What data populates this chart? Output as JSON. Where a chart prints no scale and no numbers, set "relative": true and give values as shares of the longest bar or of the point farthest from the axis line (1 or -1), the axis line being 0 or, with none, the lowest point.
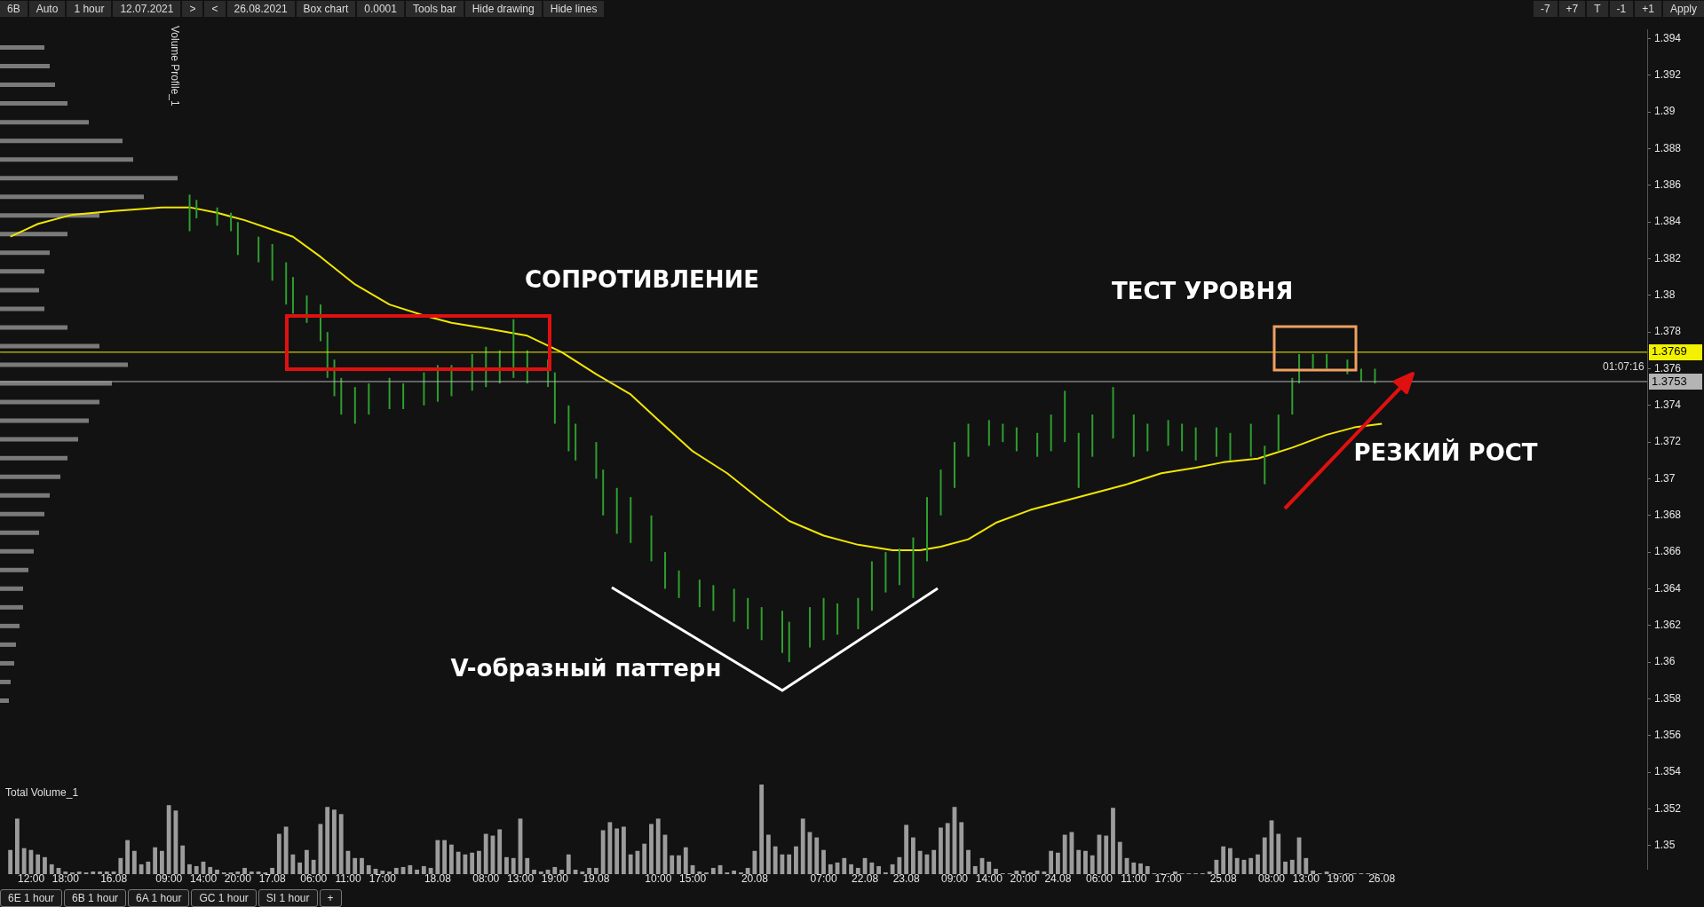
{
  "chart_data": [
    {
      "type": "bar",
      "ylim": [
        1.3487,
        1.3945
      ],
      "yticks": [
        1.35,
        1.352,
        1.354,
        1.356,
        1.358,
        1.36,
        1.362,
        1.364,
        1.366,
        1.368,
        1.37,
        1.372,
        1.374,
        1.376,
        1.378,
        1.38,
        1.382,
        1.384,
        1.386,
        1.388,
        1.39,
        1.392,
        1.394
      ],
      "marker": "none",
      "categories": [
        null,
        null,
        null,
        null,
        "12:00",
        null,
        null,
        null,
        null,
        "18:00",
        null,
        null,
        null,
        null,
        null,
        null,
        "16.08",
        null,
        null,
        null,
        null,
        null,
        null,
        null,
        "09:00",
        null,
        null,
        null,
        null,
        "14:00",
        null,
        null,
        null,
        null,
        "20:00",
        null,
        null,
        null,
        null,
        "17.08",
        null,
        null,
        null,
        null,
        null,
        "06:00",
        null,
        null,
        null,
        null,
        "11:00",
        null,
        null,
        null,
        null,
        "17:00",
        null,
        null,
        null,
        null,
        null,
        null,
        null,
        "18.08",
        null,
        null,
        null,
        null,
        null,
        null,
        "08:00",
        null,
        null,
        null,
        null,
        "13:00",
        null,
        null,
        null,
        null,
        "19:00",
        null,
        null,
        null,
        null,
        null,
        "19.08",
        null,
        null,
        null,
        null,
        null,
        null,
        null,
        null,
        "10:00",
        null,
        null,
        null,
        null,
        "15:00",
        null,
        null,
        null,
        null,
        null,
        null,
        null,
        null,
        "20.08",
        null,
        null,
        null,
        null,
        null,
        null,
        null,
        null,
        null,
        "07:00",
        null,
        null,
        null,
        null,
        null,
        "22.08",
        null,
        null,
        null,
        null,
        null,
        "23.08",
        null,
        null,
        null,
        null,
        null,
        null,
        "09:00",
        null,
        null,
        null,
        null,
        "14:00",
        null,
        null,
        null,
        null,
        "20:00",
        null,
        null,
        null,
        null,
        "24.08",
        null,
        null,
        null,
        null,
        null,
        "06:00",
        null,
        null,
        null,
        null,
        "11:00",
        null,
        null,
        null,
        null,
        "17:00",
        null,
        null,
        null,
        null,
        null,
        null,
        null,
        "25.08",
        null,
        null,
        null,
        null,
        null,
        null,
        "08:00",
        null,
        null,
        null,
        null,
        "13:00",
        null,
        null,
        null,
        null,
        "19:00",
        null,
        null,
        null,
        null,
        null,
        "26.08",
        null,
        null,
        null,
        null,
        null,
        null,
        null,
        null,
        null,
        null,
        null,
        null,
        null,
        null,
        null,
        null,
        null,
        null,
        null,
        null,
        null,
        null,
        null,
        null,
        null,
        null,
        null,
        null,
        null,
        null,
        null,
        null,
        null,
        null,
        null,
        null,
        null,
        null
      ],
      "series": [
        {
          "type": "bar",
          "color": "#2f9e2f",
          "base": [
            null,
            null,
            null,
            null,
            null,
            null,
            null,
            null,
            null,
            null,
            null,
            null,
            null,
            null,
            null,
            null,
            null,
            null,
            null,
            null,
            null,
            null,
            null,
            null,
            null,
            null,
            null,
            1.3835,
            1.3842,
            null,
            null,
            1.3838,
            null,
            1.3835,
            1.3822,
            null,
            null,
            1.3818,
            null,
            1.3808,
            null,
            1.3795,
            1.379,
            null,
            1.3785,
            null,
            1.3775,
            1.3755,
            1.3745,
            1.3735,
            null,
            1.373,
            null,
            1.3735,
            null,
            null,
            1.3738,
            null,
            1.3738,
            null,
            null,
            1.374,
            null,
            1.3742,
            null,
            1.3745,
            null,
            null,
            1.3748,
            null,
            1.375,
            null,
            1.3752,
            null,
            1.3755,
            null,
            1.3752,
            null,
            null,
            1.375,
            1.373,
            null,
            1.3715,
            1.371,
            null,
            null,
            1.37,
            1.368,
            null,
            1.367,
            null,
            1.3665,
            null,
            null,
            1.3655,
            null,
            1.364,
            null,
            1.3635,
            null,
            null,
            1.363,
            null,
            1.3628,
            null,
            null,
            1.3622,
            null,
            1.3618,
            null,
            1.3612,
            null,
            null,
            1.3605,
            1.36,
            null,
            null,
            1.3608,
            null,
            1.3612,
            null,
            1.3615,
            null,
            null,
            1.3618,
            null,
            1.3628,
            null,
            1.3638,
            null,
            1.3642,
            null,
            1.3635,
            null,
            1.3655,
            null,
            1.368,
            null,
            1.3695,
            null,
            1.3712,
            null,
            null,
            1.3718,
            null,
            1.372,
            null,
            1.3715,
            null,
            null,
            1.3712,
            null,
            1.3715,
            null,
            1.372,
            null,
            1.3695,
            null,
            1.3712,
            null,
            null,
            1.3722,
            null,
            null,
            1.3712,
            null,
            1.3715,
            null,
            null,
            1.3718,
            null,
            1.3715,
            null,
            1.371,
            null,
            null,
            1.3712,
            null,
            1.371,
            null,
            null,
            1.3712,
            null,
            1.3697,
            null,
            1.3715,
            null,
            1.3735,
            1.3752,
            null,
            1.376,
            null,
            1.376,
            null,
            null,
            1.3757,
            null,
            1.3753,
            null,
            1.3752,
            null,
            null,
            null,
            null,
            null,
            null,
            null,
            null,
            null,
            null,
            null,
            null,
            null,
            null,
            null,
            null,
            null,
            null,
            null,
            null,
            null,
            null,
            null,
            null,
            null,
            null,
            null,
            null,
            null,
            null,
            null,
            null,
            null,
            null,
            null,
            null,
            null,
            null,
            null
          ],
          "values": [
            null,
            null,
            null,
            null,
            null,
            null,
            null,
            null,
            null,
            null,
            null,
            null,
            null,
            null,
            null,
            null,
            null,
            null,
            null,
            null,
            null,
            null,
            null,
            null,
            null,
            null,
            null,
            0.002,
            0.001,
            null,
            null,
            0.001,
            null,
            0.001,
            0.0018,
            null,
            null,
            0.0014,
            null,
            0.002,
            null,
            0.0023,
            0.002,
            null,
            0.0015,
            null,
            0.002,
            0.0025,
            0.002,
            0.002,
            null,
            0.002,
            null,
            0.0017,
            null,
            null,
            0.0017,
            null,
            0.0014,
            null,
            null,
            0.0018,
            null,
            0.002,
            null,
            0.0017,
            null,
            null,
            0.002,
            null,
            0.0022,
            null,
            0.0018,
            null,
            0.0032,
            null,
            0.0018,
            null,
            null,
            0.0015,
            0.0028,
            null,
            0.0025,
            0.002,
            null,
            null,
            0.002,
            0.0025,
            null,
            0.0025,
            null,
            0.0025,
            null,
            null,
            0.0025,
            null,
            0.002,
            null,
            0.0015,
            null,
            null,
            0.0015,
            null,
            0.0014,
            null,
            null,
            0.0018,
            null,
            0.0017,
            null,
            0.0018,
            null,
            null,
            0.0023,
            0.0022,
            null,
            null,
            0.0022,
            null,
            0.0023,
            null,
            0.0017,
            null,
            null,
            0.0017,
            null,
            0.0027,
            null,
            0.0022,
            null,
            0.002,
            null,
            0.0033,
            null,
            0.0035,
            null,
            0.0025,
            null,
            0.0025,
            null,
            0.0018,
            null,
            null,
            0.0014,
            null,
            0.001,
            null,
            0.0013,
            null,
            null,
            0.0013,
            null,
            0.002,
            null,
            0.0028,
            null,
            0.003,
            null,
            0.0023,
            null,
            null,
            0.0028,
            null,
            null,
            0.0023,
            null,
            0.0015,
            null,
            null,
            0.0014,
            null,
            0.0015,
            null,
            0.0018,
            null,
            null,
            0.0016,
            null,
            0.0015,
            null,
            null,
            0.0018,
            null,
            0.0021,
            null,
            0.002,
            null,
            0.002,
            0.0016,
            null,
            0.0008,
            null,
            0.0008,
            null,
            null,
            0.0008,
            null,
            0.0007,
            null,
            0.0008,
            null,
            null,
            null,
            null,
            null,
            null,
            null,
            null,
            null,
            null,
            null,
            null,
            null,
            null,
            null,
            null,
            null,
            null,
            null,
            null,
            null,
            null,
            null,
            null,
            null,
            null,
            null,
            null,
            null,
            null,
            null,
            null,
            null,
            null,
            null,
            null,
            null,
            null,
            null
          ]
        },
        {
          "type": "line",
          "color": "#f2e600",
          "values": [
            null,
            1.3832,
            null,
            null,
            null,
            1.3839,
            null,
            null,
            null,
            null,
            1.3844,
            null,
            null,
            null,
            null,
            null,
            1.3846,
            null,
            null,
            null,
            null,
            null,
            null,
            1.3848,
            null,
            null,
            null,
            1.3848,
            null,
            null,
            null,
            1.3845,
            null,
            null,
            null,
            1.3841,
            null,
            null,
            null,
            null,
            null,
            null,
            1.3832,
            null,
            null,
            null,
            1.3821,
            null,
            null,
            null,
            null,
            1.3806,
            null,
            null,
            null,
            null,
            1.3795,
            null,
            null,
            null,
            null,
            1.3789,
            null,
            null,
            null,
            1.3785,
            null,
            null,
            null,
            null,
            1.3782,
            null,
            null,
            null,
            null,
            null,
            1.3778,
            null,
            null,
            null,
            null,
            1.3769,
            null,
            null,
            null,
            null,
            1.3757,
            null,
            null,
            null,
            null,
            1.3746,
            null,
            null,
            null,
            1.3732,
            null,
            null,
            null,
            null,
            1.3715,
            null,
            null,
            null,
            null,
            1.3703,
            null,
            null,
            null,
            null,
            1.3688,
            null,
            null,
            null,
            1.3677,
            null,
            null,
            null,
            null,
            1.3669,
            null,
            null,
            null,
            null,
            1.3664,
            null,
            null,
            null,
            null,
            1.3661,
            null,
            null,
            null,
            1.3661,
            null,
            null,
            1.3663,
            null,
            null,
            null,
            1.3667,
            null,
            null,
            null,
            1.3676,
            null,
            null,
            null,
            null,
            1.3683,
            null,
            null,
            null,
            null,
            1.3688,
            null,
            null,
            null,
            null,
            1.3693,
            null,
            null,
            null,
            1.3697,
            null,
            null,
            null,
            null,
            1.3703,
            null,
            null,
            null,
            null,
            1.3706,
            null,
            null,
            null,
            1.3709,
            null,
            null,
            null,
            null,
            1.3711,
            null,
            null,
            null,
            null,
            1.3717,
            null,
            null,
            null,
            null,
            1.3724,
            null,
            null,
            null,
            1.3728,
            null,
            null,
            null,
            1.373,
            null,
            null,
            null,
            null,
            null,
            null,
            null,
            null,
            null,
            null,
            null,
            null,
            null,
            null,
            null,
            null,
            null,
            null,
            null,
            null,
            null,
            null,
            null,
            null,
            null,
            null,
            null,
            null,
            null,
            null,
            null,
            null,
            null,
            null,
            null,
            null,
            null,
            null
          ]
        }
      ],
      "ref_lines": [
        {
          "axis": "y",
          "value": 1.3769,
          "label": "1.3769",
          "color": "#f2f200"
        },
        {
          "axis": "y",
          "value": 1.3753,
          "label": "1.3753",
          "color": "#b4b4b4"
        }
      ],
      "annotations": [
        "СОПРОТИВЛЕНИЕ",
        "ТЕСТ УРОВНЯ",
        "РЕЗКИЙ РОСТ",
        "V-образный паттерн",
        "01:07:16"
      ]
    },
    {
      "type": "bar",
      "relative": true,
      "title": "Total Volume_1",
      "color": "#9c9c9c",
      "tick_labels": false,
      "categories": [
        null,
        null,
        null,
        null,
        null,
        null,
        null,
        null,
        null,
        null,
        null,
        null,
        null,
        null,
        null,
        null,
        null,
        null,
        null,
        null,
        null,
        null,
        null,
        null,
        null,
        null,
        null,
        null,
        null,
        null,
        null,
        null,
        null,
        null,
        null,
        null,
        null,
        null,
        null,
        null,
        null,
        null,
        null,
        null,
        null,
        null,
        null,
        null,
        null,
        null,
        null,
        null,
        null,
        null,
        null,
        null,
        null,
        null,
        null,
        null,
        null,
        null,
        null,
        null,
        null,
        null,
        null,
        null,
        null,
        null,
        null,
        null,
        null,
        null,
        null,
        null,
        null,
        null,
        null,
        null,
        null,
        null,
        null,
        null,
        null,
        null,
        null,
        null,
        null,
        null,
        null,
        null,
        null,
        null,
        null,
        null,
        null,
        null,
        null,
        null,
        null,
        null,
        null,
        null,
        null,
        null,
        null,
        null,
        null,
        null,
        null,
        null,
        null,
        null,
        null,
        null,
        null,
        null,
        null,
        null,
        null,
        null,
        null,
        null,
        null,
        null,
        null,
        null,
        null,
        null,
        null,
        null,
        null,
        null,
        null,
        null,
        null,
        null,
        null,
        null,
        null,
        null,
        null,
        null,
        null,
        null,
        null,
        null,
        null,
        null,
        null,
        null,
        null,
        null,
        null,
        null,
        null,
        null,
        null,
        null,
        null,
        null,
        null,
        null,
        null,
        null,
        null,
        null,
        null,
        null,
        null,
        null,
        null,
        null,
        null,
        null,
        null,
        null,
        null,
        null,
        null,
        null,
        null,
        null,
        null,
        null,
        null,
        null,
        null,
        null,
        null,
        null,
        null,
        null,
        null,
        null,
        null,
        null,
        null,
        null,
        null,
        null,
        null,
        null,
        null,
        null,
        null,
        null,
        null,
        null,
        null,
        null,
        null,
        null,
        null,
        null,
        null,
        null,
        null,
        null,
        null,
        null,
        null,
        null,
        null,
        null,
        null,
        null,
        null,
        null,
        null,
        null,
        null,
        null,
        null,
        null,
        null,
        null,
        null
      ],
      "values": [
        null,
        0.27,
        0.62,
        0.29,
        0.27,
        0.22,
        0.19,
        0.11,
        0.07,
        0.03,
        0.02,
        0.03,
        0.02,
        0.03,
        0.03,
        0.03,
        0.03,
        0.18,
        0.38,
        0.26,
        0.11,
        0.14,
        0.3,
        0.26,
        0.77,
        0.71,
        0.32,
        0.11,
        0.09,
        0.14,
        0.08,
        0.05,
        0.02,
        0.02,
        0.03,
        0.07,
        0.03,
        0.03,
        0.02,
        0.07,
        0.45,
        0.53,
        0.22,
        0.13,
        0.27,
        0.16,
        0.56,
        0.75,
        0.72,
        0.67,
        0.26,
        0.18,
        0.18,
        0.1,
        0.06,
        0.04,
        0.03,
        0.07,
        0.08,
        0.1,
        0.05,
        0.09,
        0.07,
        0.38,
        0.38,
        0.33,
        0.25,
        0.22,
        0.24,
        0.26,
        0.45,
        0.43,
        0.5,
        0.19,
        0.18,
        0.62,
        0.18,
        0.05,
        0.03,
        0.05,
        0.08,
        0.05,
        0.22,
        0.05,
        0.03,
        0.07,
        0.07,
        0.49,
        0.58,
        0.51,
        0.53,
        0.22,
        0.26,
        0.34,
        0.56,
        0.62,
        0.44,
        0.21,
        0.21,
        0.3,
        0.1,
        0.03,
        0.02,
        0.07,
        0.1,
        0.02,
        0.04,
        0.02,
        0.07,
        0.26,
        1,
        0.44,
        0.31,
        0.22,
        0.22,
        0.31,
        0.62,
        0.47,
        0.41,
        0.27,
        0.11,
        0.13,
        0.18,
        0.11,
        0.07,
        0.18,
        0.13,
        0.09,
        0.02,
        0.11,
        0.19,
        0.55,
        0.41,
        0.26,
        0.22,
        0.27,
        0.52,
        0.57,
        0.75,
        0.58,
        0.27,
        0.09,
        0.18,
        0.14,
        0.06,
        0.01,
        0.01,
        0.04,
        0.04,
        0.02,
        0.04,
        0.03,
        0.26,
        0.24,
        0.44,
        0.47,
        0.27,
        0.26,
        0.21,
        0.44,
        0.43,
        0.74,
        0.36,
        0.18,
        0.13,
        0.12,
        0.09,
        0.01,
        0.01,
        0.01,
        0.03,
        0.01,
        0.01,
        0.01,
        0.01,
        0.03,
        0.16,
        0.31,
        0.29,
        0.18,
        0.16,
        0.18,
        0.22,
        0.41,
        0.6,
        0.45,
        0.14,
        0.16,
        0.41,
        0.18,
        0.04,
        0.01,
        0.03,
        0.01,
        0.01,
        0.01,
        0.01,
        0.01,
        0.01,
        0.01,
        0.01,
        null,
        null,
        null,
        null,
        null,
        null,
        null,
        null,
        null,
        null,
        null,
        null,
        null,
        null,
        null,
        null,
        null,
        null,
        null,
        null,
        null,
        null,
        null,
        null,
        null,
        null,
        null,
        null,
        null,
        null,
        null,
        null,
        null,
        null,
        null,
        null,
        null,
        null
      ]
    },
    {
      "type": "bar",
      "orientation": "horizontal",
      "relative": true,
      "title": "Volume Profile_1",
      "color": "#7a7a7a",
      "tick_labels": false,
      "categories": [
        null,
        null,
        null,
        null,
        null,
        null,
        null,
        null,
        null,
        null,
        null,
        null,
        null,
        null,
        null,
        null,
        null,
        null,
        null,
        null,
        null,
        null,
        null,
        null,
        null,
        null,
        null,
        null,
        null,
        null,
        null,
        null,
        null,
        null,
        null,
        null
      ],
      "values": [
        0.25,
        0.28,
        0.31,
        0.38,
        0.5,
        0.69,
        0.75,
        1,
        0.81,
        0.56,
        0.38,
        0.28,
        0.25,
        0.22,
        0.25,
        0.38,
        0.56,
        0.72,
        0.63,
        0.56,
        0.5,
        0.44,
        0.38,
        0.34,
        0.28,
        0.25,
        0.22,
        0.19,
        0.16,
        0.13,
        0.13,
        0.11,
        0.09,
        0.08,
        0.06,
        0.05
      ]
    },
    {
      "type": "other",
      "annotations": [
        "6B",
        "Auto",
        "1 hour",
        "12.07.2021",
        ">",
        "<",
        "26.08.2021",
        "Box chart",
        "0.0001",
        "Tools bar",
        "Hide drawing",
        "Hide lines"
      ]
    },
    {
      "type": "other",
      "annotations": [
        "-7",
        "+7",
        "T",
        "-1",
        "+1",
        "Apply"
      ]
    },
    {
      "type": "other",
      "annotations": [
        "6E 1 hour",
        "6B 1 hour",
        "6A 1 hour",
        "GC 1 hour",
        "SI 1 hour",
        "+"
      ]
    }
  ]
}
